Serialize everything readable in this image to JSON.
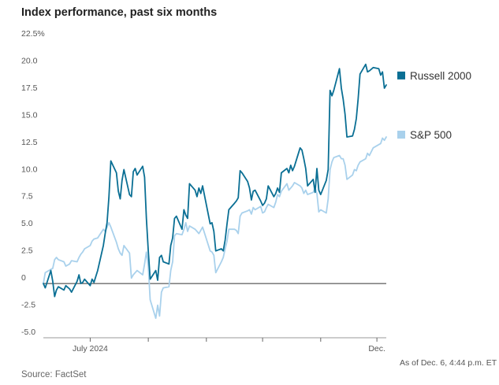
{
  "chart_data": {
    "type": "line",
    "title": "Index performance, past six months",
    "xlabel": "",
    "ylabel": "",
    "ylim": [
      -5,
      22.5
    ],
    "yticks": [
      {
        "value": 22.5,
        "label": "22.5%"
      },
      {
        "value": 20,
        "label": "20.0"
      },
      {
        "value": 17.5,
        "label": "17.5"
      },
      {
        "value": 15,
        "label": "15.0"
      },
      {
        "value": 12.5,
        "label": "12.5"
      },
      {
        "value": 10,
        "label": "10.0"
      },
      {
        "value": 7.5,
        "label": "7.5"
      },
      {
        "value": 5,
        "label": "5.0"
      },
      {
        "value": 2.5,
        "label": "2.5"
      },
      {
        "value": 0,
        "label": "0"
      },
      {
        "value": -2.5,
        "label": "-2.5"
      },
      {
        "value": -5,
        "label": "-5.0"
      }
    ],
    "xlim": [
      "2024-06-06",
      "2024-12-06"
    ],
    "xticks": [
      {
        "date": "2024-07-01",
        "label": "July 2024"
      },
      {
        "date": "2024-08-01",
        "label": ""
      },
      {
        "date": "2024-09-01",
        "label": ""
      },
      {
        "date": "2024-10-01",
        "label": ""
      },
      {
        "date": "2024-11-01",
        "label": ""
      },
      {
        "date": "2024-12-01",
        "label": "Dec."
      }
    ],
    "grid": false,
    "legend": "right",
    "series": [
      {
        "name": "Russell 2000",
        "color": "#0a6f94",
        "points": [
          [
            "2024-06-06",
            0
          ],
          [
            "2024-06-07",
            -0.4
          ],
          [
            "2024-06-10",
            1.2
          ],
          [
            "2024-06-11",
            0.2
          ],
          [
            "2024-06-12",
            -1.2
          ],
          [
            "2024-06-13",
            -0.6
          ],
          [
            "2024-06-14",
            -0.3
          ],
          [
            "2024-06-17",
            -0.6
          ],
          [
            "2024-06-18",
            -0.2
          ],
          [
            "2024-06-20",
            -0.5
          ],
          [
            "2024-06-21",
            -0.8
          ],
          [
            "2024-06-24",
            0.2
          ],
          [
            "2024-06-25",
            0.8
          ],
          [
            "2024-06-26",
            0.0
          ],
          [
            "2024-06-27",
            0.1
          ],
          [
            "2024-06-28",
            0.4
          ],
          [
            "2024-07-01",
            -0.2
          ],
          [
            "2024-07-02",
            0.4
          ],
          [
            "2024-07-03",
            0.1
          ],
          [
            "2024-07-05",
            1.2
          ],
          [
            "2024-07-08",
            3.5
          ],
          [
            "2024-07-09",
            4.6
          ],
          [
            "2024-07-10",
            5.6
          ],
          [
            "2024-07-11",
            8.0
          ],
          [
            "2024-07-12",
            11.3
          ],
          [
            "2024-07-15",
            10.2
          ],
          [
            "2024-07-16",
            8.5
          ],
          [
            "2024-07-17",
            7.8
          ],
          [
            "2024-07-18",
            9.5
          ],
          [
            "2024-07-19",
            10.5
          ],
          [
            "2024-07-22",
            8.2
          ],
          [
            "2024-07-23",
            8.0
          ],
          [
            "2024-07-24",
            10.3
          ],
          [
            "2024-07-25",
            10.6
          ],
          [
            "2024-07-26",
            10.0
          ],
          [
            "2024-07-29",
            10.8
          ],
          [
            "2024-07-30",
            9.8
          ],
          [
            "2024-07-31",
            6.0
          ],
          [
            "2024-08-01",
            3.0
          ],
          [
            "2024-08-02",
            0.4
          ],
          [
            "2024-08-05",
            1.2
          ],
          [
            "2024-08-06",
            0.3
          ],
          [
            "2024-08-07",
            2.4
          ],
          [
            "2024-08-08",
            2.6
          ],
          [
            "2024-08-09",
            2.0
          ],
          [
            "2024-08-12",
            1.8
          ],
          [
            "2024-08-13",
            3.5
          ],
          [
            "2024-08-14",
            4.2
          ],
          [
            "2024-08-15",
            6.0
          ],
          [
            "2024-08-16",
            6.2
          ],
          [
            "2024-08-19",
            5.0
          ],
          [
            "2024-08-20",
            6.8
          ],
          [
            "2024-08-21",
            6.3
          ],
          [
            "2024-08-22",
            6.0
          ],
          [
            "2024-08-23",
            9.2
          ],
          [
            "2024-08-26",
            8.6
          ],
          [
            "2024-08-27",
            8.0
          ],
          [
            "2024-08-28",
            8.8
          ],
          [
            "2024-08-29",
            8.3
          ],
          [
            "2024-08-30",
            9.0
          ],
          [
            "2024-09-03",
            5.5
          ],
          [
            "2024-09-04",
            5.6
          ],
          [
            "2024-09-05",
            4.8
          ],
          [
            "2024-09-06",
            3.0
          ],
          [
            "2024-09-09",
            3.2
          ],
          [
            "2024-09-10",
            3.0
          ],
          [
            "2024-09-11",
            4.0
          ],
          [
            "2024-09-12",
            5.5
          ],
          [
            "2024-09-13",
            6.8
          ],
          [
            "2024-09-16",
            7.4
          ],
          [
            "2024-09-17",
            7.6
          ],
          [
            "2024-09-18",
            7.9
          ],
          [
            "2024-09-19",
            10.4
          ],
          [
            "2024-09-20",
            10.2
          ],
          [
            "2024-09-23",
            9.4
          ],
          [
            "2024-09-24",
            8.8
          ],
          [
            "2024-09-25",
            7.7
          ],
          [
            "2024-09-26",
            8.5
          ],
          [
            "2024-09-27",
            8.6
          ],
          [
            "2024-09-30",
            7.6
          ],
          [
            "2024-10-01",
            7.2
          ],
          [
            "2024-10-02",
            7.4
          ],
          [
            "2024-10-03",
            7.8
          ],
          [
            "2024-10-04",
            9.0
          ],
          [
            "2024-10-07",
            8.0
          ],
          [
            "2024-10-08",
            8.3
          ],
          [
            "2024-10-09",
            8.8
          ],
          [
            "2024-10-10",
            8.4
          ],
          [
            "2024-10-11",
            10.2
          ],
          [
            "2024-10-14",
            10.6
          ],
          [
            "2024-10-15",
            10.2
          ],
          [
            "2024-10-16",
            10.9
          ],
          [
            "2024-10-17",
            10.4
          ],
          [
            "2024-10-18",
            10.8
          ],
          [
            "2024-10-21",
            12.5
          ],
          [
            "2024-10-22",
            12.3
          ],
          [
            "2024-10-23",
            11.5
          ],
          [
            "2024-10-24",
            10.6
          ],
          [
            "2024-10-25",
            9.0
          ],
          [
            "2024-10-28",
            9.6
          ],
          [
            "2024-10-29",
            8.4
          ],
          [
            "2024-10-30",
            10.6
          ],
          [
            "2024-10-31",
            8.6
          ],
          [
            "2024-11-01",
            8.2
          ],
          [
            "2024-11-04",
            9.5
          ],
          [
            "2024-11-05",
            10.5
          ],
          [
            "2024-11-06",
            17.8
          ],
          [
            "2024-11-07",
            17.3
          ],
          [
            "2024-11-08",
            17.8
          ],
          [
            "2024-11-11",
            19.8
          ],
          [
            "2024-11-12",
            18.0
          ],
          [
            "2024-11-13",
            17.0
          ],
          [
            "2024-11-14",
            15.6
          ],
          [
            "2024-11-15",
            13.5
          ],
          [
            "2024-11-18",
            13.6
          ],
          [
            "2024-11-19",
            14.2
          ],
          [
            "2024-11-20",
            15.2
          ],
          [
            "2024-11-21",
            17.0
          ],
          [
            "2024-11-22",
            19.3
          ],
          [
            "2024-11-25",
            20.2
          ],
          [
            "2024-11-26",
            19.5
          ],
          [
            "2024-11-27",
            19.6
          ],
          [
            "2024-11-29",
            19.9
          ],
          [
            "2024-12-02",
            19.8
          ],
          [
            "2024-12-03",
            19.2
          ],
          [
            "2024-12-04",
            19.5
          ],
          [
            "2024-12-05",
            18.0
          ],
          [
            "2024-12-06",
            18.3
          ]
        ]
      },
      {
        "name": "S&P 500",
        "color": "#a9d1ec",
        "points": [
          [
            "2024-06-06",
            0
          ],
          [
            "2024-06-07",
            1.0
          ],
          [
            "2024-06-10",
            1.3
          ],
          [
            "2024-06-11",
            1.4
          ],
          [
            "2024-06-12",
            2.2
          ],
          [
            "2024-06-13",
            2.4
          ],
          [
            "2024-06-14",
            2.2
          ],
          [
            "2024-06-17",
            2.0
          ],
          [
            "2024-06-18",
            1.6
          ],
          [
            "2024-06-20",
            1.8
          ],
          [
            "2024-06-21",
            2.1
          ],
          [
            "2024-06-24",
            2.0
          ],
          [
            "2024-06-25",
            2.4
          ],
          [
            "2024-06-26",
            2.7
          ],
          [
            "2024-06-27",
            2.9
          ],
          [
            "2024-06-28",
            3.2
          ],
          [
            "2024-07-01",
            3.5
          ],
          [
            "2024-07-02",
            3.9
          ],
          [
            "2024-07-03",
            4.1
          ],
          [
            "2024-07-05",
            4.2
          ],
          [
            "2024-07-08",
            5.0
          ],
          [
            "2024-07-09",
            4.8
          ],
          [
            "2024-07-10",
            5.2
          ],
          [
            "2024-07-11",
            5.6
          ],
          [
            "2024-07-12",
            5.2
          ],
          [
            "2024-07-15",
            3.8
          ],
          [
            "2024-07-16",
            3.2
          ],
          [
            "2024-07-17",
            2.8
          ],
          [
            "2024-07-18",
            2.6
          ],
          [
            "2024-07-19",
            3.5
          ],
          [
            "2024-07-22",
            2.8
          ],
          [
            "2024-07-23",
            0.5
          ],
          [
            "2024-07-24",
            0.8
          ],
          [
            "2024-07-25",
            1.0
          ],
          [
            "2024-07-26",
            1.2
          ],
          [
            "2024-07-29",
            0.8
          ],
          [
            "2024-07-30",
            1.8
          ],
          [
            "2024-07-31",
            2.9
          ],
          [
            "2024-08-01",
            1.6
          ],
          [
            "2024-08-02",
            -1.5
          ],
          [
            "2024-08-05",
            -3.2
          ],
          [
            "2024-08-06",
            -2.0
          ],
          [
            "2024-08-07",
            -3.0
          ],
          [
            "2024-08-08",
            -0.8
          ],
          [
            "2024-08-09",
            -0.4
          ],
          [
            "2024-08-12",
            -0.3
          ],
          [
            "2024-08-13",
            1.2
          ],
          [
            "2024-08-14",
            2.0
          ],
          [
            "2024-08-15",
            4.4
          ],
          [
            "2024-08-16",
            4.6
          ],
          [
            "2024-08-19",
            4.5
          ],
          [
            "2024-08-20",
            5.0
          ],
          [
            "2024-08-21",
            5.6
          ],
          [
            "2024-08-22",
            4.8
          ],
          [
            "2024-08-23",
            5.3
          ],
          [
            "2024-08-26",
            5.0
          ],
          [
            "2024-08-27",
            4.8
          ],
          [
            "2024-08-28",
            4.6
          ],
          [
            "2024-08-29",
            4.9
          ],
          [
            "2024-08-30",
            5.2
          ],
          [
            "2024-09-03",
            3.0
          ],
          [
            "2024-09-04",
            2.9
          ],
          [
            "2024-09-05",
            2.6
          ],
          [
            "2024-09-06",
            1.0
          ],
          [
            "2024-09-09",
            2.0
          ],
          [
            "2024-09-10",
            2.4
          ],
          [
            "2024-09-11",
            3.2
          ],
          [
            "2024-09-12",
            3.9
          ],
          [
            "2024-09-13",
            5.0
          ],
          [
            "2024-09-16",
            5.0
          ],
          [
            "2024-09-17",
            4.9
          ],
          [
            "2024-09-18",
            4.6
          ],
          [
            "2024-09-19",
            6.2
          ],
          [
            "2024-09-20",
            6.5
          ],
          [
            "2024-09-23",
            6.7
          ],
          [
            "2024-09-24",
            6.8
          ],
          [
            "2024-09-25",
            6.4
          ],
          [
            "2024-09-26",
            7.0
          ],
          [
            "2024-09-27",
            6.8
          ],
          [
            "2024-09-30",
            7.1
          ],
          [
            "2024-10-01",
            6.5
          ],
          [
            "2024-10-02",
            6.6
          ],
          [
            "2024-10-03",
            7.0
          ],
          [
            "2024-10-04",
            7.3
          ],
          [
            "2024-10-07",
            7.0
          ],
          [
            "2024-10-08",
            7.5
          ],
          [
            "2024-10-09",
            8.2
          ],
          [
            "2024-10-10",
            8.0
          ],
          [
            "2024-10-11",
            8.5
          ],
          [
            "2024-10-14",
            9.2
          ],
          [
            "2024-10-15",
            8.6
          ],
          [
            "2024-10-16",
            8.8
          ],
          [
            "2024-10-17",
            9.0
          ],
          [
            "2024-10-18",
            9.3
          ],
          [
            "2024-10-21",
            9.0
          ],
          [
            "2024-10-22",
            8.8
          ],
          [
            "2024-10-23",
            8.3
          ],
          [
            "2024-10-24",
            8.6
          ],
          [
            "2024-10-25",
            8.2
          ],
          [
            "2024-10-28",
            8.4
          ],
          [
            "2024-10-29",
            8.8
          ],
          [
            "2024-10-30",
            8.3
          ],
          [
            "2024-10-31",
            6.6
          ],
          [
            "2024-11-01",
            6.8
          ],
          [
            "2024-11-04",
            6.5
          ],
          [
            "2024-11-05",
            7.8
          ],
          [
            "2024-11-06",
            10.5
          ],
          [
            "2024-11-07",
            11.2
          ],
          [
            "2024-11-08",
            11.6
          ],
          [
            "2024-11-11",
            11.8
          ],
          [
            "2024-11-12",
            11.5
          ],
          [
            "2024-11-13",
            11.5
          ],
          [
            "2024-11-14",
            10.9
          ],
          [
            "2024-11-15",
            9.6
          ],
          [
            "2024-11-18",
            10.0
          ],
          [
            "2024-11-19",
            10.5
          ],
          [
            "2024-11-20",
            10.4
          ],
          [
            "2024-11-21",
            10.9
          ],
          [
            "2024-11-22",
            11.2
          ],
          [
            "2024-11-25",
            11.5
          ],
          [
            "2024-11-26",
            12.0
          ],
          [
            "2024-11-27",
            11.8
          ],
          [
            "2024-11-29",
            12.5
          ],
          [
            "2024-12-02",
            12.8
          ],
          [
            "2024-12-03",
            12.9
          ],
          [
            "2024-12-04",
            13.4
          ],
          [
            "2024-12-05",
            13.2
          ],
          [
            "2024-12-06",
            13.5
          ]
        ]
      }
    ]
  },
  "notes": {
    "source": "Source: FactSet",
    "timestamp": "As of Dec. 6, 4:44 p.m. ET"
  }
}
